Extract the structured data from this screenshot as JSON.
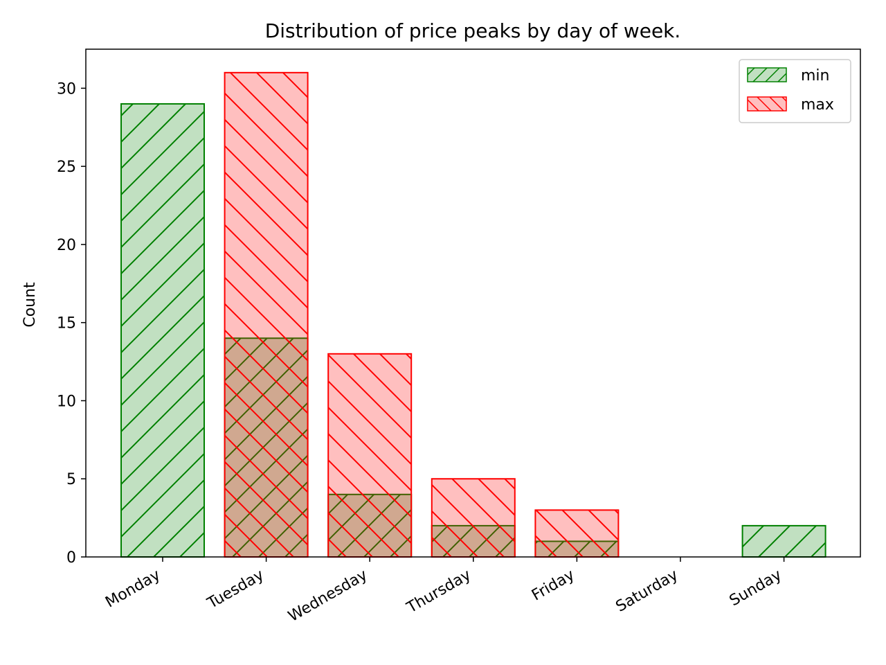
{
  "chart_data": {
    "type": "bar",
    "title": "Distribution of price peaks by day of week.",
    "xlabel": "",
    "ylabel": "Count",
    "ylim": [
      0,
      32.5
    ],
    "yticks": [
      0,
      5,
      10,
      15,
      20,
      25,
      30
    ],
    "categories": [
      "Monday",
      "Tuesday",
      "Wednesday",
      "Thursday",
      "Friday",
      "Saturday",
      "Sunday"
    ],
    "series": [
      {
        "name": "min",
        "values": [
          29,
          14,
          4,
          2,
          1,
          0,
          2
        ],
        "color": "#008000",
        "fill": "#c1e0c1",
        "hatch": "/"
      },
      {
        "name": "max",
        "values": [
          0,
          31,
          13,
          5,
          3,
          0,
          0
        ],
        "color": "#ff0000",
        "fill": "#ff0000",
        "hatch": "\\"
      }
    ],
    "grid": false,
    "legend_position": "upper right",
    "overlay_bars": true
  }
}
